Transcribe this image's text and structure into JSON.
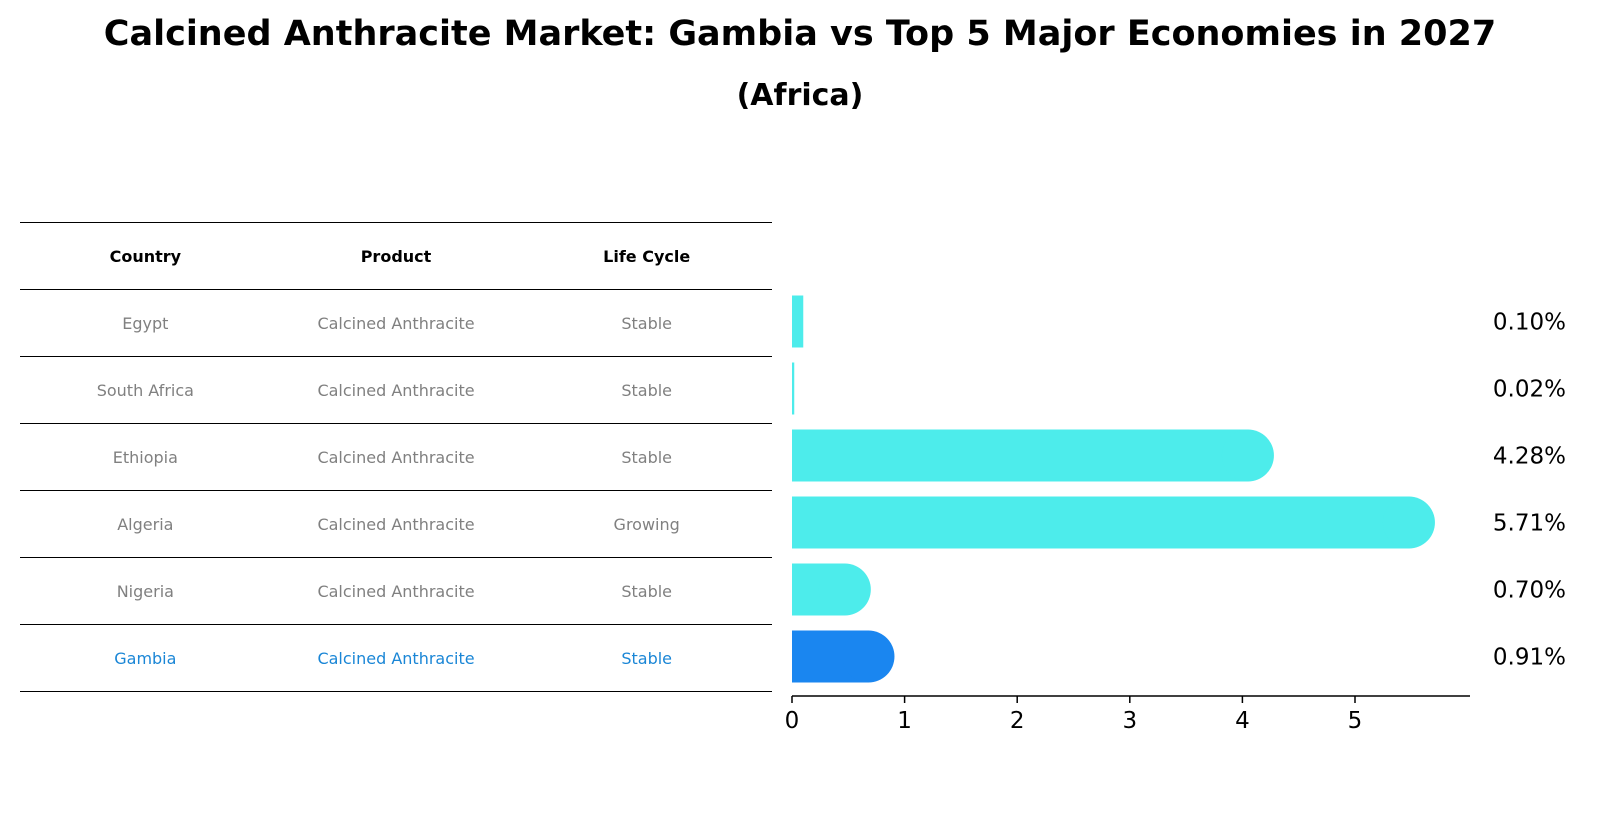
{
  "title": "Calcined Anthracite Market: Gambia vs Top 5 Major Economies in 2027",
  "subtitle": "(Africa)",
  "table": {
    "headers": [
      "Country",
      "Product",
      "Life Cycle"
    ],
    "rows": [
      {
        "country": "Egypt",
        "product": "Calcined Anthracite",
        "life_cycle": "Stable"
      },
      {
        "country": "South Africa",
        "product": "Calcined Anthracite",
        "life_cycle": "Stable"
      },
      {
        "country": "Ethiopia",
        "product": "Calcined Anthracite",
        "life_cycle": "Stable"
      },
      {
        "country": "Algeria",
        "product": "Calcined Anthracite",
        "life_cycle": "Growing"
      },
      {
        "country": "Nigeria",
        "product": "Calcined Anthracite",
        "life_cycle": "Stable"
      },
      {
        "country": "Gambia",
        "product": "Calcined Anthracite",
        "life_cycle": "Stable"
      }
    ]
  },
  "colors": {
    "bar": "#4deceb",
    "highlight_bar": "#1a86f0",
    "highlight_text": "#1a86d6",
    "muted_text": "#808080"
  },
  "chart_data": {
    "type": "bar",
    "orientation": "horizontal",
    "categories": [
      "Egypt",
      "South Africa",
      "Ethiopia",
      "Algeria",
      "Nigeria",
      "Gambia"
    ],
    "values": [
      0.1,
      0.02,
      4.28,
      5.71,
      0.7,
      0.91
    ],
    "value_labels": [
      "0.10%",
      "0.02%",
      "4.28%",
      "5.71%",
      "0.70%",
      "0.91%"
    ],
    "highlight": "Gambia",
    "xticks": [
      0,
      1,
      2,
      3,
      4,
      5
    ],
    "xlim": [
      0,
      6.0
    ],
    "xlabel": "",
    "ylabel": ""
  }
}
